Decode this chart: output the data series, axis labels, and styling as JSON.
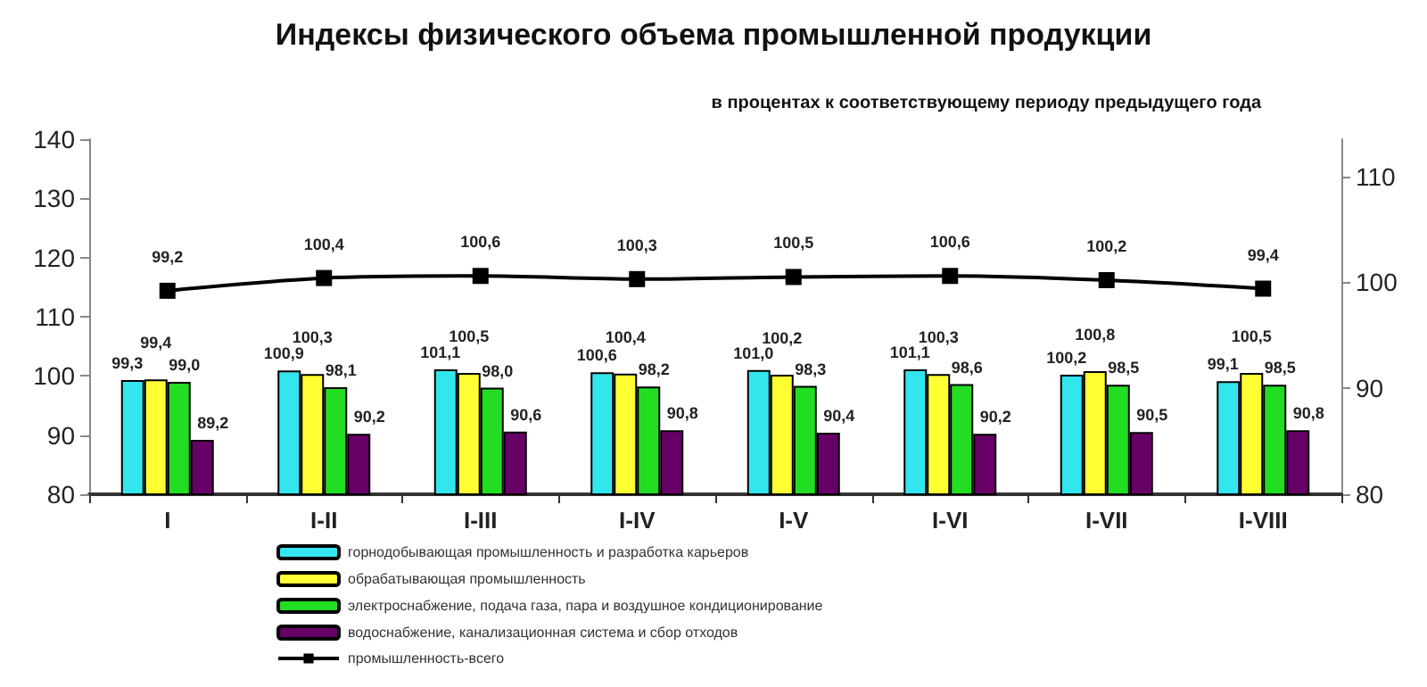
{
  "chart_data": {
    "type": "bar",
    "title": "Индексы физического объема промышленной продукции",
    "subtitle": "в процентах к соответствующему периоду предыдущего года",
    "categories": [
      "I",
      "I-II",
      "I-III",
      "I-IV",
      "I-V",
      "I-VI",
      "I-VII",
      "I-VIII"
    ],
    "series": [
      {
        "name": "горнодобывающая промышленность и разработка карьеров",
        "color": "#33e6ee",
        "values": [
          99.3,
          100.9,
          101.1,
          100.6,
          101.0,
          101.1,
          100.2,
          99.1
        ],
        "value_labels": [
          "99,3",
          "100,9",
          "101,1",
          "100,6",
          "101,0",
          "101,1",
          "100,2",
          "99,1"
        ]
      },
      {
        "name": "обрабатывающая промышленность",
        "color": "#ffff33",
        "values": [
          99.4,
          100.3,
          100.5,
          100.4,
          100.2,
          100.3,
          100.8,
          100.5
        ],
        "value_labels": [
          "99,4",
          "100,3",
          "100,5",
          "100,4",
          "100,2",
          "100,3",
          "100,8",
          "100,5"
        ]
      },
      {
        "name": "электроснабжение, подача газа, пара и воздушное кондиционирование",
        "color": "#22dd22",
        "values": [
          99.0,
          98.1,
          98.0,
          98.2,
          98.3,
          98.6,
          98.5,
          98.5
        ],
        "value_labels": [
          "99,0",
          "98,1",
          "98,0",
          "98,2",
          "98,3",
          "98,6",
          "98,5",
          "98,5"
        ]
      },
      {
        "name": "водоснабжение, канализационная система и сбор отходов",
        "color": "#660066",
        "values": [
          89.2,
          90.2,
          90.6,
          90.8,
          90.4,
          90.2,
          90.5,
          90.8
        ],
        "value_labels": [
          "89,2",
          "90,2",
          "90,6",
          "90,8",
          "90,4",
          "90,2",
          "90,5",
          "90,8"
        ]
      },
      {
        "name": "промышленность-всего",
        "type": "line",
        "axis": "y2",
        "color": "#000000",
        "values": [
          99.2,
          100.4,
          100.6,
          100.3,
          100.5,
          100.6,
          100.2,
          99.4
        ],
        "value_labels": [
          "99,2",
          "100,4",
          "100,6",
          "100,3",
          "100,5",
          "100,6",
          "100,2",
          "99,4"
        ]
      }
    ],
    "ylim": [
      80,
      140
    ],
    "yticks": [
      80,
      90,
      100,
      110,
      120,
      130,
      140
    ],
    "y2lim": [
      80,
      113.5
    ],
    "y2ticks": [
      80,
      90,
      100,
      110
    ],
    "legend": "bottom",
    "grid": false,
    "marker": "square",
    "line_style": "solid"
  }
}
